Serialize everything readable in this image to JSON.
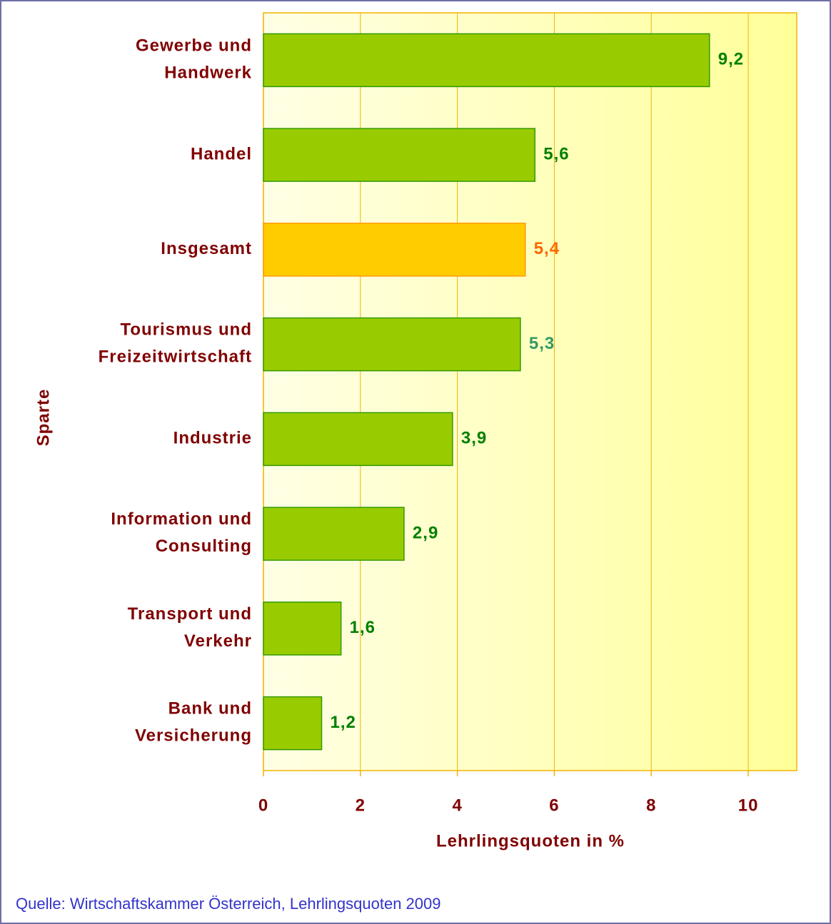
{
  "chart_data": {
    "type": "barh",
    "categories": [
      "Gewerbe und\nHandwerk",
      "Handel",
      "Insgesamt",
      "Tourismus und\nFreizeitwirtschaft",
      "Industrie",
      "Information und\nConsulting",
      "Transport und\nVerkehr",
      "Bank und\nVersicherung"
    ],
    "values": [
      9.2,
      5.6,
      5.4,
      5.3,
      3.9,
      2.9,
      1.6,
      1.2
    ],
    "value_labels": [
      "9,2",
      "5,6",
      "5,4",
      "5,3",
      "3,9",
      "2,9",
      "1,6",
      "1,2"
    ],
    "colors": [
      "#99cc00",
      "#99cc00",
      "#ffcc00",
      "#99cc00",
      "#99cc00",
      "#99cc00",
      "#99cc00",
      "#99cc00"
    ],
    "value_label_colors": [
      "#008000",
      "#008000",
      "#ff6600",
      "#339966",
      "#008000",
      "#008000",
      "#008000",
      "#008000"
    ],
    "xlim": [
      0,
      11
    ],
    "xticks": [
      0,
      2,
      4,
      6,
      8,
      10
    ],
    "grid": true,
    "x_label": "Lehrlingsquoten in %",
    "y_label": "Sparte",
    "source": "Quelle: Wirtschaftskammer Österreich, Lehrlingsquoten 2009"
  }
}
